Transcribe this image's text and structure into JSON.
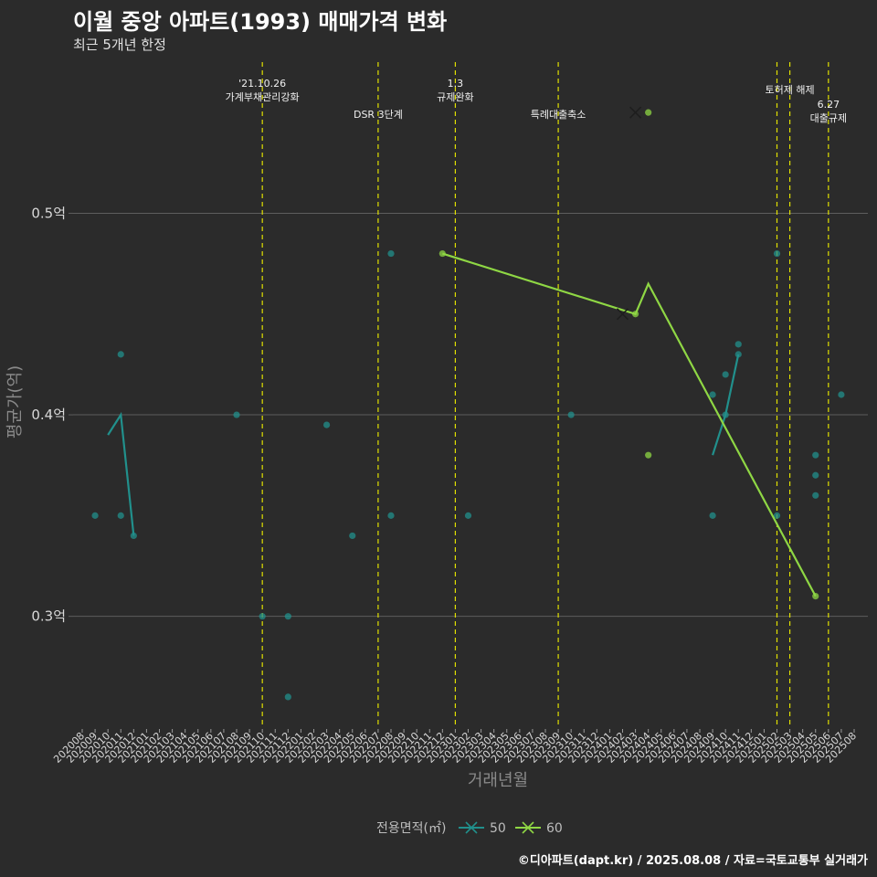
{
  "header": {
    "title": "이월 중앙 아파트(1993) 매매가격 변화",
    "subtitle": "최근 5개년 한정"
  },
  "caption": "©디아파트(dapt.kr) / 2025.08.08 / 자료=국토교통부 실거래가",
  "colors": {
    "background": "#2b2b2b",
    "grid": "#5e5e5e",
    "vline": "#e1e100",
    "series50": "#21908c",
    "series60": "#8fd744"
  },
  "chart_data": {
    "type": "line",
    "title": "이월 중앙 아파트(1993) 매매가격 변화",
    "xlabel": "거래년월",
    "ylabel": "평균가(억)",
    "ylim": [
      0.245,
      0.575
    ],
    "yticks": [
      {
        "value": 0.3,
        "label": "0.3억"
      },
      {
        "value": 0.4,
        "label": "0.4억"
      },
      {
        "value": 0.5,
        "label": "0.5억"
      }
    ],
    "grid": true,
    "legend_position": "bottom",
    "legend_title": "전용면적(㎡)",
    "categories": [
      "202008",
      "202009",
      "202010",
      "202011",
      "202012",
      "202101",
      "202102",
      "202103",
      "202104",
      "202105",
      "202106",
      "202107",
      "202108",
      "202109",
      "202110",
      "202111",
      "202112",
      "202201",
      "202202",
      "202203",
      "202204",
      "202205",
      "202206",
      "202207",
      "202208",
      "202209",
      "202210",
      "202211",
      "202212",
      "202301",
      "202302",
      "202303",
      "202304",
      "202305",
      "202306",
      "202307",
      "202308",
      "202309",
      "202310",
      "202311",
      "202312",
      "202401",
      "202402",
      "202403",
      "202404",
      "202405",
      "202406",
      "202407",
      "202408",
      "202409",
      "202410",
      "202411",
      "202412",
      "202501",
      "202502",
      "202503",
      "202504",
      "202505",
      "202506",
      "202507",
      "202508"
    ],
    "series": [
      {
        "name": "50",
        "line": [
          [
            "202010",
            0.39
          ],
          [
            "202011",
            0.4
          ],
          [
            "202012",
            0.34
          ],
          [
            "202409",
            0.38
          ],
          [
            "202410",
            0.4
          ],
          [
            "202411",
            0.43
          ]
        ],
        "line_segments": [
          [
            0,
            3
          ],
          [
            3,
            6
          ]
        ],
        "points": [
          [
            "202009",
            0.35
          ],
          [
            "202011",
            0.35
          ],
          [
            "202011",
            0.43
          ],
          [
            "202012",
            0.34
          ],
          [
            "202108",
            0.4
          ],
          [
            "202110",
            0.3
          ],
          [
            "202112",
            0.3
          ],
          [
            "202112",
            0.26
          ],
          [
            "202203",
            0.395
          ],
          [
            "202205",
            0.34
          ],
          [
            "202208",
            0.48
          ],
          [
            "202208",
            0.35
          ],
          [
            "202302",
            0.35
          ],
          [
            "202310",
            0.4
          ],
          [
            "202409",
            0.41
          ],
          [
            "202409",
            0.35
          ],
          [
            "202410",
            0.42
          ],
          [
            "202410",
            0.4
          ],
          [
            "202411",
            0.435
          ],
          [
            "202411",
            0.43
          ],
          [
            "202502",
            0.48
          ],
          [
            "202502",
            0.35
          ],
          [
            "202505",
            0.38
          ],
          [
            "202505",
            0.37
          ],
          [
            "202505",
            0.36
          ],
          [
            "202507",
            0.41
          ]
        ]
      },
      {
        "name": "60",
        "line": [
          [
            "202212",
            0.48
          ],
          [
            "202403",
            0.45
          ],
          [
            "202404",
            0.465
          ],
          [
            "202505",
            0.31
          ]
        ],
        "line_segments": [
          [
            0,
            4
          ]
        ],
        "points": [
          [
            "202212",
            0.48
          ],
          [
            "202403",
            0.45
          ],
          [
            "202404",
            0.55
          ],
          [
            "202404",
            0.38
          ],
          [
            "202505",
            0.31
          ]
        ]
      }
    ],
    "cross_markers": [
      {
        "series": "50",
        "x": "202402",
        "y": 0.45
      },
      {
        "series": "60",
        "x": "202403",
        "y": 0.55
      }
    ],
    "events": [
      {
        "x": "202110",
        "lines": [
          "'21.10.26",
          "가계부채관리강화"
        ],
        "level": "high"
      },
      {
        "x": "202207",
        "lines": [
          "DSR 3단계"
        ],
        "level": "low"
      },
      {
        "x": "202301",
        "lines": [
          "1.3",
          "규제완화"
        ],
        "level": "high"
      },
      {
        "x": "202309",
        "lines": [
          "특례대출축소"
        ],
        "level": "low"
      },
      {
        "x": "202502",
        "lines": [],
        "level": "none"
      },
      {
        "x": "202503",
        "lines": [
          "토허제 해제"
        ],
        "level": "top"
      },
      {
        "x": "202506",
        "lines": [
          "6.27",
          "대출규제"
        ],
        "level": "mid"
      }
    ]
  }
}
